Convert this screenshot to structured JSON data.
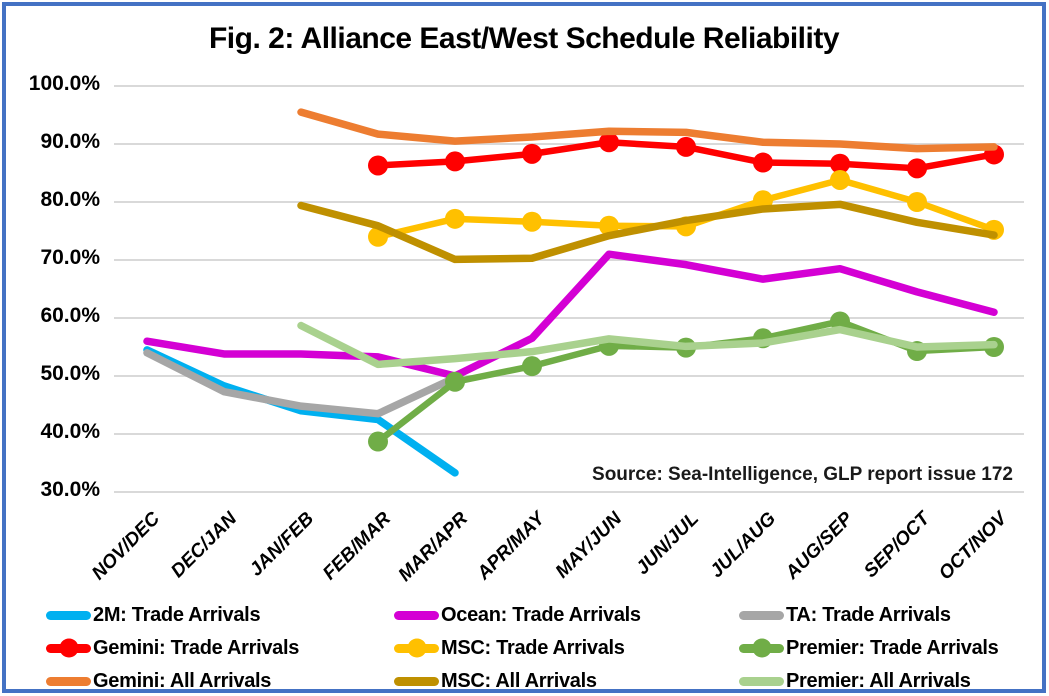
{
  "frame": {
    "border_color": "#4472C4",
    "background": "#FFFFFF"
  },
  "title": "Fig. 2: Alliance East/West Schedule Reliability",
  "source_note": "Source: Sea-Intelligence, GLP report issue 172",
  "chart_data": {
    "type": "line",
    "title": "Fig. 2: Alliance East/West Schedule Reliability",
    "xlabel": "",
    "ylabel": "",
    "grid": true,
    "gridline_color": "#D9D9D9",
    "legend_position": "bottom",
    "y_axis": {
      "min": 30,
      "max": 100,
      "step": 10,
      "tick_labels": [
        "100.0%",
        "90.0%",
        "80.0%",
        "70.0%",
        "60.0%",
        "50.0%",
        "40.0%",
        "30.0%"
      ]
    },
    "categories": [
      "NOV/DEC",
      "DEC/JAN",
      "JAN/FEB",
      "FEB/MAR",
      "MAR/APR",
      "APR/MAY",
      "MAY/JUN",
      "JUN/JUL",
      "JUL/AUG",
      "AUG/SEP",
      "SEP/OCT",
      "OCT/NOV"
    ],
    "series": [
      {
        "name": "2M: Trade Arrivals",
        "color": "#00B0F0",
        "markers": false,
        "values": [
          54.5,
          48.3,
          44.0,
          42.5,
          33.3,
          null,
          null,
          null,
          null,
          null,
          null,
          null
        ]
      },
      {
        "name": "Ocean: Trade Arrivals",
        "color": "#D400D4",
        "markers": false,
        "values": [
          56.0,
          53.8,
          53.8,
          53.3,
          50.0,
          56.5,
          71.0,
          69.2,
          66.7,
          68.5,
          64.5,
          61.0
        ]
      },
      {
        "name": "TA: Trade Arrivals",
        "color": "#A6A6A6",
        "markers": false,
        "values": [
          54.0,
          47.3,
          44.8,
          43.5,
          49.7,
          null,
          null,
          null,
          null,
          null,
          null,
          null
        ]
      },
      {
        "name": "Gemini: Trade Arrivals",
        "color": "#FF0000",
        "markers": true,
        "values": [
          null,
          null,
          null,
          86.3,
          87.0,
          88.3,
          90.3,
          89.5,
          86.8,
          86.6,
          85.8,
          88.2
        ]
      },
      {
        "name": "MSC: Trade Arrivals",
        "color": "#FFC000",
        "markers": true,
        "values": [
          null,
          null,
          null,
          74.0,
          77.1,
          76.6,
          75.9,
          75.8,
          80.3,
          83.8,
          80.0,
          75.2
        ]
      },
      {
        "name": "Premier: Trade Arrivals",
        "color": "#70AD47",
        "markers": true,
        "values": [
          null,
          null,
          null,
          38.7,
          49.0,
          51.7,
          55.2,
          54.9,
          56.5,
          59.4,
          54.3,
          55.0
        ]
      },
      {
        "name": "Gemini: All Arrivals",
        "color": "#ED7D31",
        "markers": false,
        "values": [
          null,
          null,
          95.5,
          91.7,
          90.5,
          91.2,
          92.2,
          92.0,
          90.3,
          90.0,
          89.2,
          89.5
        ]
      },
      {
        "name": "MSC: All Arrivals",
        "color": "#BF9000",
        "markers": false,
        "values": [
          null,
          null,
          79.4,
          75.9,
          70.1,
          70.3,
          74.2,
          76.8,
          78.8,
          79.6,
          76.5,
          74.3
        ]
      },
      {
        "name": "Premier: All Arrivals",
        "color": "#A9D18E",
        "markers": false,
        "values": [
          null,
          null,
          58.7,
          52.0,
          53.0,
          54.2,
          56.4,
          55.1,
          55.7,
          58.0,
          55.0,
          55.4
        ]
      }
    ]
  }
}
